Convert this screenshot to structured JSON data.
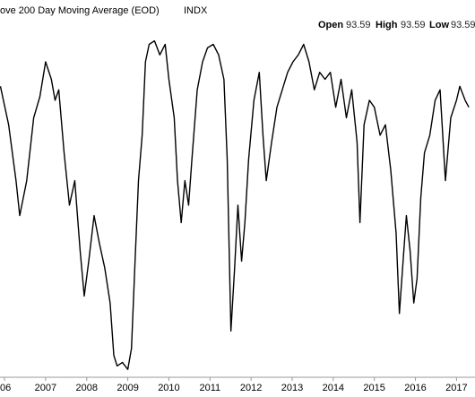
{
  "chart_data": {
    "type": "line",
    "title": "ove 200 Day Moving Average (EOD)",
    "symbol": "INDX",
    "header": {
      "open_label": "Open",
      "open": "93.59",
      "high_label": "High",
      "high": "93.59",
      "low_label": "Low",
      "low": "93.59"
    },
    "x": [
      2005.9,
      2006.1,
      2006.28,
      2006.37,
      2006.54,
      2006.71,
      2006.86,
      2007.0,
      2007.14,
      2007.23,
      2007.32,
      2007.45,
      2007.58,
      2007.71,
      2007.84,
      2007.94,
      2008.05,
      2008.18,
      2008.31,
      2008.44,
      2008.57,
      2008.66,
      2008.74,
      2008.87,
      2009.0,
      2009.09,
      2009.17,
      2009.26,
      2009.35,
      2009.43,
      2009.52,
      2009.65,
      2009.78,
      2009.91,
      2010.0,
      2010.13,
      2010.21,
      2010.3,
      2010.39,
      2010.48,
      2010.56,
      2010.69,
      2010.82,
      2010.94,
      2011.08,
      2011.21,
      2011.34,
      2011.42,
      2011.51,
      2011.6,
      2011.68,
      2011.77,
      2011.85,
      2011.94,
      2012.07,
      2012.2,
      2012.29,
      2012.37,
      2012.5,
      2012.63,
      2012.76,
      2012.89,
      2013.02,
      2013.15,
      2013.28,
      2013.41,
      2013.54,
      2013.67,
      2013.8,
      2013.93,
      2014.06,
      2014.19,
      2014.32,
      2014.45,
      2014.58,
      2014.65,
      2014.75,
      2014.88,
      2015.0,
      2015.14,
      2015.27,
      2015.4,
      2015.53,
      2015.61,
      2015.7,
      2015.78,
      2015.87,
      2015.96,
      2016.04,
      2016.13,
      2016.22,
      2016.35,
      2016.48,
      2016.6,
      2016.73,
      2016.86,
      2017.0,
      2017.08,
      2017.21,
      2017.3
    ],
    "values": [
      83,
      72,
      56,
      46,
      56,
      74,
      80,
      90,
      85,
      79,
      82,
      64,
      49,
      56,
      36,
      23,
      33,
      46,
      38,
      31,
      21,
      6,
      3,
      4,
      2,
      8,
      31,
      56,
      69,
      90,
      95,
      96,
      92,
      95,
      85,
      74,
      56,
      44,
      56,
      49,
      62,
      82,
      90,
      94,
      95,
      92,
      85,
      62,
      13,
      31,
      49,
      33,
      44,
      62,
      79,
      87,
      69,
      56,
      67,
      77,
      82,
      87,
      90,
      92,
      95,
      90,
      82,
      87,
      85,
      87,
      77,
      85,
      74,
      82,
      67,
      44,
      72,
      79,
      77,
      69,
      72,
      59,
      41,
      18,
      33,
      46,
      36,
      21,
      28,
      51,
      64,
      69,
      79,
      82,
      56,
      74,
      79,
      83,
      79,
      77
    ],
    "color": "#000000",
    "xlim": [
      2005.89,
      2017.45
    ],
    "ylim": [
      0,
      100
    ],
    "xticks": [
      {
        "value": 2006,
        "label": "06"
      },
      2007,
      2008,
      2009,
      2010,
      2011,
      2012,
      2013,
      2014,
      2015,
      2016,
      2017
    ]
  }
}
